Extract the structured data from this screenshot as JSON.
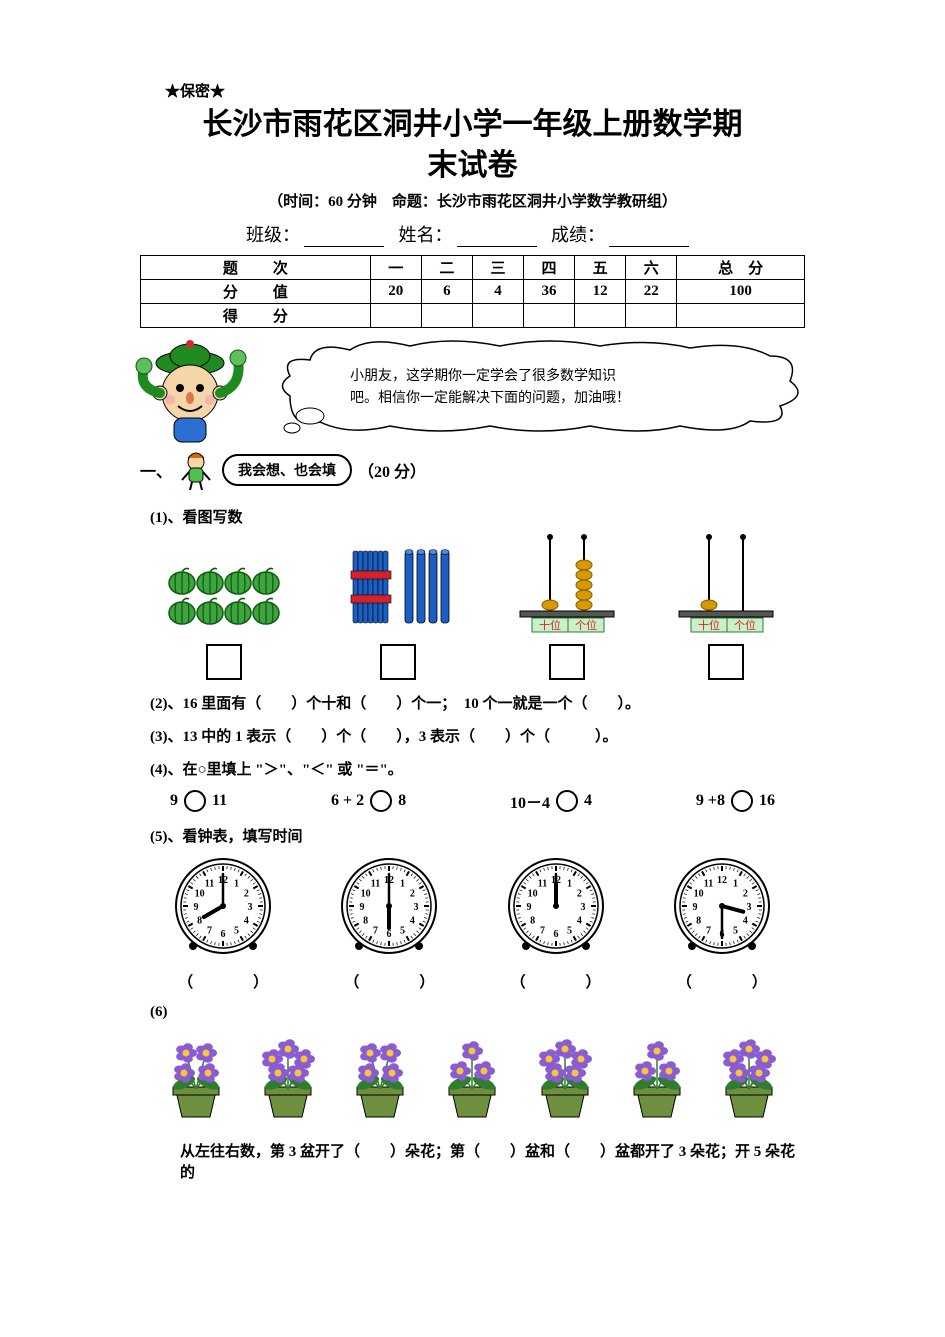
{
  "confidential": "★保密★",
  "title_line1": "长沙市雨花区洞井小学一年级上册数学期",
  "title_line2": "末试卷",
  "subtitle": "（时间：60 分钟　命题：长沙市雨花区洞井小学数学教研组）",
  "info": {
    "class_label": "班级：",
    "name_label": "姓名：",
    "score_label": "成绩："
  },
  "table": {
    "row_labels": [
      "题　次",
      "分　值",
      "得　分"
    ],
    "cols": [
      "一",
      "二",
      "三",
      "四",
      "五",
      "六",
      "总　分"
    ],
    "values": [
      "20",
      "6",
      "4",
      "36",
      "12",
      "22",
      "100"
    ]
  },
  "cloud_text_l1": "小朋友，这学期你一定学会了很多数学知识",
  "cloud_text_l2": "吧。相信你一定能解决下面的问题，加油哦！",
  "section1": {
    "num": "一、",
    "pill": "我会想、也会填",
    "pts": "（20 分）"
  },
  "q1_label": "(1)、看图写数",
  "q1": {
    "watermelon_count": 8,
    "sticks": {
      "bundle": 10,
      "loose": 4,
      "bundle_color": "#d6212a",
      "stick_color": "#1c5fc4"
    },
    "abacus1": {
      "tens_beads": 1,
      "ones_beads": 5,
      "tens_label": "十位",
      "ones_label": "个位",
      "bead_color": "#d69a00",
      "label_bg": "#c9f0c9"
    },
    "abacus2": {
      "tens_beads": 1,
      "ones_beads": 0,
      "tens_label": "十位",
      "ones_label": "个位",
      "bead_color": "#d69a00",
      "label_bg": "#c9f0c9"
    }
  },
  "q2": "(2)、16 里面有（　　）个十和（　　）个一；　10 个一就是一个（　　）。",
  "q3": "(3)、13 中的 1 表示（　　）个（　　），3 表示（　　）个（　　　）。",
  "q4_label": "(4)、在○里填上 \"＞\"、\"＜\" 或 \"＝\"。",
  "q4": {
    "a_left": "9",
    "a_right": "11",
    "b_left": "6 + 2",
    "b_right": "8",
    "c_left": "10－4",
    "c_right": "4",
    "d_left": "9 +8",
    "d_right": "16"
  },
  "q5_label": "(5)、看钟表，填写时间",
  "q5": {
    "paren": "（　　　　）",
    "clocks": [
      {
        "hour": 8,
        "minute": 0
      },
      {
        "hour": 6,
        "minute": 0
      },
      {
        "hour": 12,
        "minute": 0
      },
      {
        "hour": 3,
        "minute": 30
      }
    ]
  },
  "q6_label": "(6)",
  "q6": {
    "flower_counts": [
      4,
      5,
      4,
      3,
      5,
      3,
      5
    ],
    "pot_color": "#6e8f3e",
    "flower_petal": "#8a5bd1",
    "flower_center": "#f2c83a",
    "leaf_color": "#2f7d2f"
  },
  "q6_text": "从左往右数，第 3 盆开了（　　）朵花；第（　　）盆和（　　）盆都开了 3 朵花；开 5 朵花的",
  "colors": {
    "watermelon_body": "#3fa33f",
    "watermelon_stripe": "#0b5c0b",
    "hat_green": "#1f8a1f",
    "face": "#f5d6a8",
    "shirt": "#2a6fd1"
  }
}
